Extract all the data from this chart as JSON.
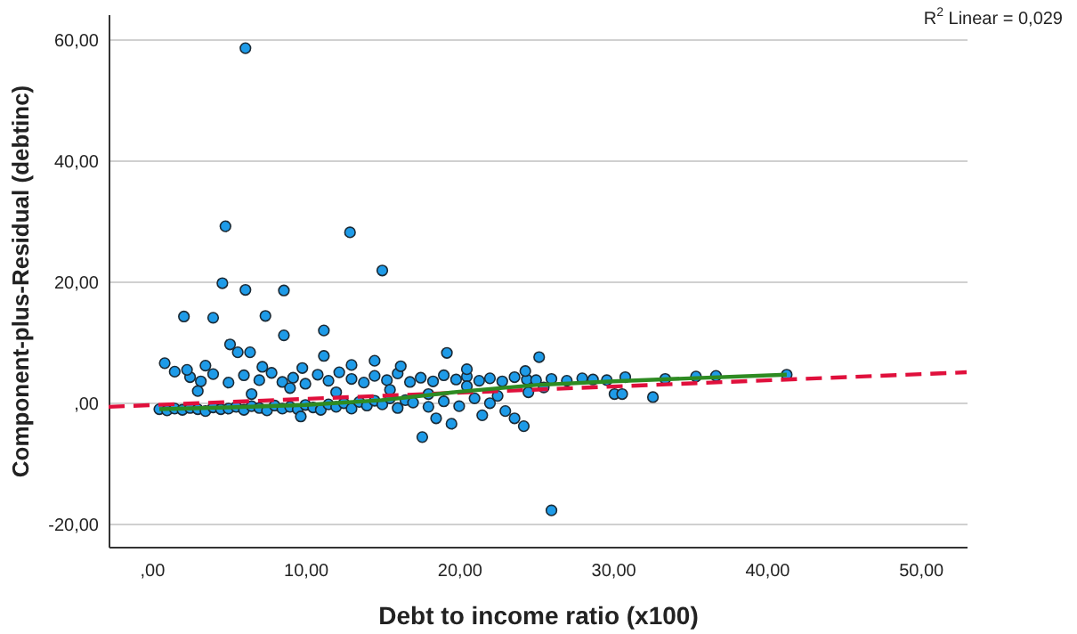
{
  "chart_data": {
    "type": "scatter",
    "xlabel": "Debt to income ratio (x100)",
    "ylabel": "Component-plus-Residual (debtinc)",
    "annotations": [
      "R$^{2}$ Linear = 0,029"
    ],
    "xlim": [
      -2.8,
      53
    ],
    "ylim": [
      -23.7,
      64.2
    ],
    "xticks": [
      {
        "value": 0,
        "label": ",00"
      },
      {
        "value": 10,
        "label": "10,00"
      },
      {
        "value": 20,
        "label": "20,00"
      },
      {
        "value": 30,
        "label": "30,00"
      },
      {
        "value": 40,
        "label": "40,00"
      },
      {
        "value": 50,
        "label": "50,00"
      }
    ],
    "yticks": [
      {
        "value": -20,
        "label": "-20,00"
      },
      {
        "value": 0,
        "label": ",00"
      },
      {
        "value": 20,
        "label": "20,00"
      },
      {
        "value": 40,
        "label": "40,00"
      },
      {
        "value": 60,
        "label": "60,00"
      }
    ],
    "grid": "y",
    "series": [
      {
        "color": "#1e9be8",
        "marker": "circle",
        "x": [
          0.5,
          1.0,
          1.5,
          2.0,
          2.5,
          3.0,
          3.5,
          4.0,
          4.5,
          5.0,
          5.5,
          6.0,
          6.5,
          7.0,
          7.5,
          8.0,
          8.5,
          9.0,
          9.5,
          10.0,
          10.5,
          11.0,
          11.5,
          12.0,
          12.5,
          13.0,
          13.5,
          14.0,
          14.5,
          15.0,
          15.5,
          16.0,
          16.5,
          17.0,
          18.0,
          19.0,
          20.0,
          21.0,
          22.0,
          9.7,
          18.5,
          19.5,
          21.5,
          23.0,
          17.6,
          24.2,
          23.6,
          26.0,
          1.5,
          2.5,
          3.2,
          4.0,
          5.0,
          6.0,
          7.0,
          7.8,
          8.5,
          9.2,
          10.0,
          10.8,
          11.5,
          12.2,
          13.0,
          13.8,
          14.5,
          15.3,
          16.0,
          16.8,
          17.5,
          18.3,
          19.0,
          19.8,
          20.5,
          21.3,
          22.0,
          22.8,
          23.6,
          24.4,
          25.0,
          26.0,
          27.0,
          28.0,
          28.7,
          29.6,
          30.8,
          33.4,
          35.4,
          36.7,
          41.3,
          3.0,
          6.5,
          9.0,
          12.0,
          15.5,
          18.0,
          20.5,
          22.5,
          24.5,
          30.1,
          30.6,
          32.6,
          25.5,
          0.85,
          2.3,
          3.5,
          5.1,
          5.6,
          6.4,
          7.2,
          8.6,
          9.8,
          11.2,
          11.2,
          13.0,
          14.5,
          16.2,
          19.2,
          20.5,
          25.2,
          24.3,
          6.1,
          4.8,
          12.9,
          15.0,
          4.6,
          6.1,
          8.6,
          2.1,
          4.0,
          7.4
        ],
        "values": [
          -1.0,
          -1.2,
          -0.9,
          -1.1,
          -0.8,
          -1.0,
          -1.3,
          -0.7,
          -1.0,
          -0.9,
          -0.6,
          -1.1,
          -0.5,
          -0.8,
          -1.2,
          -0.4,
          -0.9,
          -0.6,
          -1.0,
          -0.3,
          -0.7,
          -1.1,
          -0.2,
          -0.6,
          0.0,
          -0.9,
          0.2,
          -0.4,
          0.4,
          -0.2,
          0.8,
          -0.8,
          0.5,
          0.1,
          -0.6,
          0.3,
          -0.5,
          0.8,
          0.0,
          -2.2,
          -2.5,
          -3.4,
          -2.0,
          -1.3,
          -5.6,
          -3.8,
          -2.5,
          -17.7,
          5.2,
          4.3,
          3.6,
          4.8,
          3.4,
          4.6,
          3.8,
          5.0,
          3.5,
          4.2,
          3.2,
          4.7,
          3.7,
          5.1,
          4.0,
          3.4,
          4.5,
          3.8,
          4.9,
          3.5,
          4.2,
          3.6,
          4.6,
          3.9,
          4.4,
          3.7,
          4.1,
          3.6,
          4.3,
          3.9,
          3.8,
          4.0,
          3.7,
          4.1,
          3.9,
          3.8,
          4.3,
          4.0,
          4.4,
          4.5,
          4.7,
          2.0,
          1.5,
          2.5,
          1.8,
          2.2,
          1.5,
          2.8,
          1.2,
          1.8,
          1.5,
          1.5,
          1.0,
          2.6,
          6.6,
          5.5,
          6.2,
          9.7,
          8.4,
          8.4,
          6.0,
          11.2,
          5.8,
          7.8,
          12.0,
          6.3,
          7.0,
          6.1,
          8.3,
          5.6,
          7.6,
          5.3,
          58.6,
          29.2,
          28.2,
          21.9,
          19.8,
          18.7,
          18.6,
          14.3,
          14.1,
          14.4
        ]
      },
      {
        "type": "line",
        "color": "#e0103c",
        "line_style": "dashed",
        "x": [
          -2.8,
          53
        ],
        "values": [
          -0.6,
          5.1
        ]
      },
      {
        "type": "line",
        "color": "#2e8b22",
        "line_style": "solid",
        "x": [
          0.5,
          5,
          10,
          15,
          20,
          25,
          30,
          35,
          41.3
        ],
        "values": [
          -1.0,
          -0.7,
          -0.3,
          0.5,
          1.9,
          3.0,
          3.6,
          4.1,
          4.7
        ]
      }
    ]
  }
}
